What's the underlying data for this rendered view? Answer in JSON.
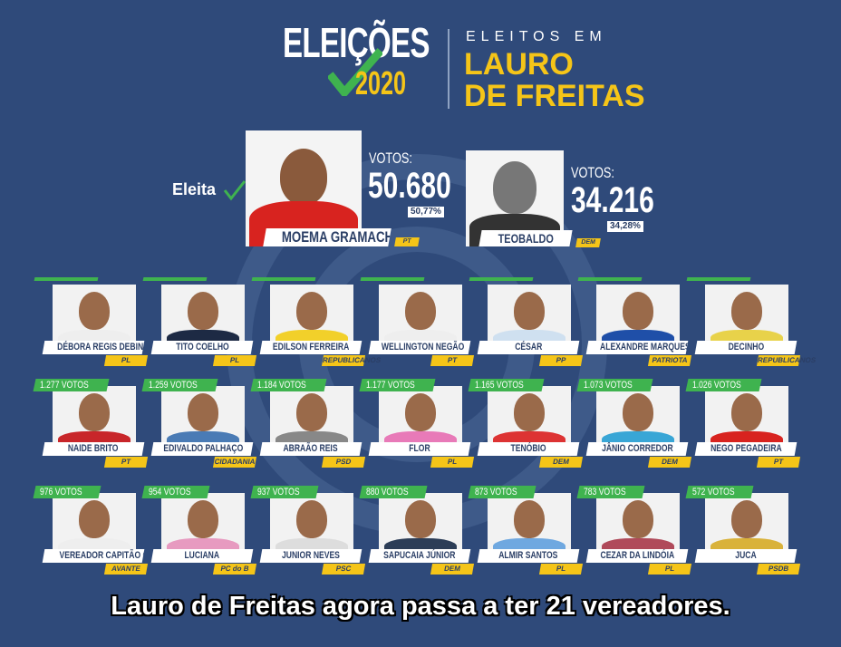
{
  "header": {
    "logo_title": "ELEIÇÕES",
    "logo_year": "2020",
    "subtitle": "ELEITOS EM",
    "city_line1": "LAURO",
    "city_line2": "DE FREITAS"
  },
  "colors": {
    "background": "#2f4a7a",
    "accent_yellow": "#f5c518",
    "accent_green": "#3fb34f"
  },
  "mayor": {
    "elected_label": "Eleita",
    "winner": {
      "name": "MOEMA GRAMACHO",
      "party": "PT",
      "votes_label": "VOTOS:",
      "votes": "50.680",
      "percent": "50,77%"
    },
    "runner_up": {
      "name": "TEOBALDO",
      "party": "DEM",
      "votes_label": "VOTOS:",
      "votes": "34.216",
      "percent": "34,28%"
    }
  },
  "councillors": [
    {
      "name": "DÉBORA REGIS DEBINHA",
      "party": "PL",
      "votes": ""
    },
    {
      "name": "TITO COELHO",
      "party": "PL",
      "votes": ""
    },
    {
      "name": "EDILSON FERREIRA",
      "party": "REPUBLICANOS",
      "votes": ""
    },
    {
      "name": "WELLINGTON NEGÃO",
      "party": "PT",
      "votes": ""
    },
    {
      "name": "CÉSAR",
      "party": "PP",
      "votes": ""
    },
    {
      "name": "ALEXANDRE MARQUES",
      "party": "PATRIOTA",
      "votes": ""
    },
    {
      "name": "DECINHO",
      "party": "REPUBLICANOS",
      "votes": ""
    },
    {
      "name": "NAIDE BRITO",
      "party": "PT",
      "votes": "1.277 VOTOS"
    },
    {
      "name": "EDIVALDO PALHAÇO",
      "party": "CIDADANIA",
      "votes": "1.259 VOTOS"
    },
    {
      "name": "ABRAÃO REIS",
      "party": "PSD",
      "votes": "1.184 VOTOS"
    },
    {
      "name": "FLOR",
      "party": "PL",
      "votes": "1.177 VOTOS"
    },
    {
      "name": "TENÓBIO",
      "party": "DEM",
      "votes": "1.165 VOTOS"
    },
    {
      "name": "JÂNIO CORREDOR",
      "party": "DEM",
      "votes": "1.073 VOTOS"
    },
    {
      "name": "NEGO PEGADEIRA",
      "party": "PT",
      "votes": "1.026 VOTOS"
    },
    {
      "name": "VEREADOR CAPITÃO OLINTO",
      "party": "AVANTE",
      "votes": "976 VOTOS"
    },
    {
      "name": "LUCIANA",
      "party": "PC do B",
      "votes": "954 VOTOS"
    },
    {
      "name": "JUNIOR NEVES",
      "party": "PSC",
      "votes": "937 VOTOS"
    },
    {
      "name": "SAPUCAIA JÚNIOR",
      "party": "DEM",
      "votes": "880 VOTOS"
    },
    {
      "name": "ALMIR SANTOS",
      "party": "PL",
      "votes": "873 VOTOS"
    },
    {
      "name": "CEZAR DA LINDÓIA",
      "party": "PL",
      "votes": "783 VOTOS"
    },
    {
      "name": "JUCA",
      "party": "PSDB",
      "votes": "572 VOTOS"
    }
  ],
  "caption": "Lauro de Freitas agora passa a ter 21 vereadores."
}
